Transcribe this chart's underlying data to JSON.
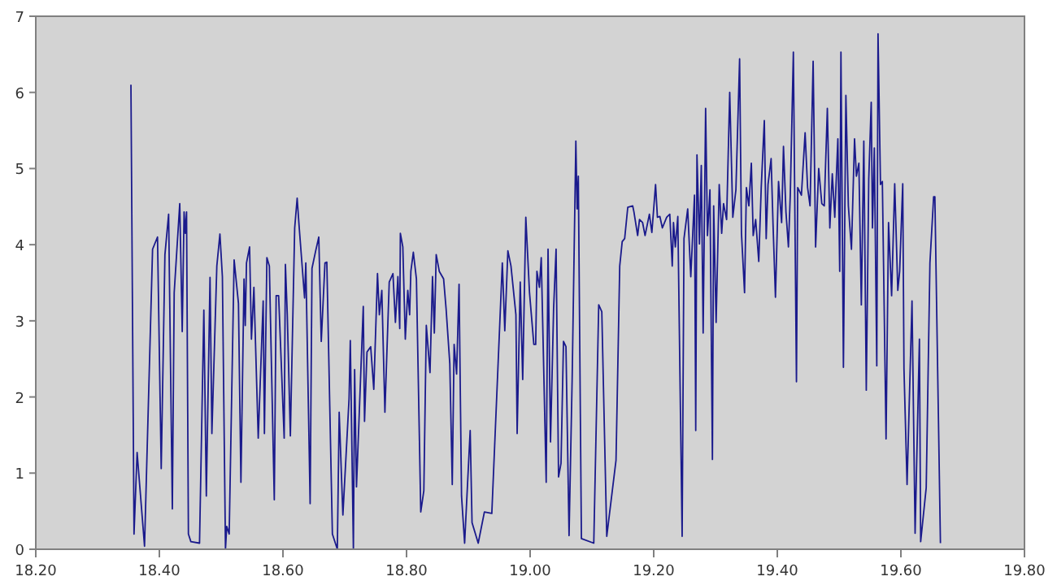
{
  "chart_data": {
    "type": "line",
    "xlim": [
      18.2,
      19.8
    ],
    "ylim": [
      0,
      7
    ],
    "xticks": [
      {
        "value": 18.2,
        "label": "18.20"
      },
      {
        "value": 18.4,
        "label": "18.40"
      },
      {
        "value": 18.6,
        "label": "18.60"
      },
      {
        "value": 18.8,
        "label": "18.80"
      },
      {
        "value": 19.0,
        "label": "19.00"
      },
      {
        "value": 19.2,
        "label": "19.20"
      },
      {
        "value": 19.4,
        "label": "19.40"
      },
      {
        "value": 19.6,
        "label": "19.60"
      },
      {
        "value": 19.8,
        "label": "19.80"
      }
    ],
    "yticks": [
      0,
      1,
      2,
      3,
      4,
      5,
      6,
      7
    ],
    "grid": false,
    "marker": "none",
    "line_style": "solid",
    "series": [
      {
        "color": "#1a1a8c",
        "x": [
          18.354,
          18.359,
          18.364,
          18.376,
          18.389,
          18.397,
          18.403,
          18.409,
          18.415,
          18.421,
          18.424,
          18.433,
          18.437,
          18.44,
          18.442,
          18.444,
          18.447,
          18.451,
          18.465,
          18.472,
          18.476,
          18.482,
          18.485,
          18.493,
          18.498,
          18.502,
          18.507,
          18.509,
          18.513,
          18.521,
          18.528,
          18.532,
          18.537,
          18.539,
          18.541,
          18.546,
          18.549,
          18.553,
          18.56,
          18.568,
          18.57,
          18.574,
          18.578,
          18.586,
          18.589,
          18.593,
          18.602,
          18.604,
          18.607,
          18.612,
          18.619,
          18.623,
          18.626,
          18.635,
          18.637,
          18.644,
          18.647,
          18.653,
          18.658,
          18.662,
          18.668,
          18.671,
          18.68,
          18.688,
          18.691,
          18.697,
          18.707,
          18.709,
          18.714,
          18.716,
          18.719,
          18.73,
          18.732,
          18.736,
          18.742,
          18.747,
          18.753,
          18.756,
          18.76,
          18.765,
          18.772,
          18.778,
          18.782,
          18.786,
          18.789,
          18.79,
          18.794,
          18.798,
          18.802,
          18.805,
          18.807,
          18.811,
          18.816,
          18.823,
          18.828,
          18.832,
          18.838,
          18.842,
          18.845,
          18.848,
          18.853,
          18.86,
          18.864,
          18.87,
          18.874,
          18.877,
          18.881,
          18.885,
          18.889,
          18.894,
          18.903,
          18.906,
          18.916,
          18.926,
          18.938,
          18.955,
          18.959,
          18.964,
          18.969,
          18.977,
          18.979,
          18.984,
          18.988,
          18.993,
          18.999,
          19.006,
          19.009,
          19.011,
          19.015,
          19.018,
          19.021,
          19.026,
          19.029,
          19.033,
          19.038,
          19.042,
          19.046,
          19.05,
          19.054,
          19.058,
          19.063,
          19.068,
          19.074,
          19.076,
          19.078,
          19.083,
          19.103,
          19.111,
          19.116,
          19.124,
          19.139,
          19.145,
          19.149,
          19.153,
          19.158,
          19.166,
          19.168,
          19.174,
          19.177,
          19.182,
          19.186,
          19.193,
          19.197,
          19.203,
          19.206,
          19.21,
          19.214,
          19.221,
          19.226,
          19.23,
          19.232,
          19.235,
          19.239,
          19.246,
          19.249,
          19.255,
          19.26,
          19.266,
          19.268,
          19.27,
          19.274,
          19.277,
          19.28,
          19.284,
          19.287,
          19.291,
          19.295,
          19.297,
          19.301,
          19.306,
          19.31,
          19.313,
          19.318,
          19.323,
          19.328,
          19.333,
          19.339,
          19.342,
          19.347,
          19.35,
          19.354,
          19.358,
          19.361,
          19.365,
          19.37,
          19.374,
          19.379,
          19.382,
          19.385,
          19.39,
          19.393,
          19.397,
          19.402,
          19.407,
          19.41,
          19.414,
          19.418,
          19.421,
          19.426,
          19.431,
          19.433,
          19.439,
          19.445,
          19.449,
          19.453,
          19.458,
          19.462,
          19.467,
          19.472,
          19.476,
          19.481,
          19.485,
          19.489,
          19.493,
          19.498,
          19.501,
          19.503,
          19.507,
          19.511,
          19.515,
          19.52,
          19.525,
          19.528,
          19.532,
          19.536,
          19.54,
          19.544,
          19.548,
          19.552,
          19.554,
          19.557,
          19.561,
          19.563,
          19.567,
          19.57,
          19.576,
          19.58,
          19.585,
          19.59,
          19.595,
          19.598,
          19.603,
          19.605,
          19.61,
          19.618,
          19.623,
          19.63,
          19.632,
          19.641,
          19.647,
          19.653,
          19.655,
          19.664
        ],
        "values": [
          6.1,
          0.2,
          1.27,
          0.04,
          3.94,
          4.1,
          1.06,
          3.87,
          4.4,
          0.53,
          3.37,
          4.54,
          2.86,
          4.43,
          4.15,
          4.43,
          0.2,
          0.1,
          0.08,
          3.14,
          0.7,
          3.57,
          1.52,
          3.72,
          4.14,
          3.58,
          0,
          0.3,
          0.2,
          3.8,
          3.23,
          0.88,
          3.55,
          2.94,
          3.76,
          3.97,
          2.76,
          3.44,
          1.46,
          3.26,
          1.52,
          3.83,
          3.72,
          0.65,
          3.33,
          3.33,
          1.46,
          3.74,
          3.08,
          1.49,
          4.22,
          4.61,
          4.26,
          3.3,
          3.76,
          0.6,
          3.69,
          3.92,
          4.1,
          2.73,
          3.76,
          3.77,
          0.2,
          0,
          1.8,
          0.45,
          1.98,
          2.74,
          0,
          2.36,
          0.82,
          3.19,
          1.68,
          2.59,
          2.66,
          2.1,
          3.62,
          3.08,
          3.4,
          1.8,
          3.51,
          3.62,
          2.98,
          3.58,
          2.9,
          4.15,
          3.97,
          2.76,
          3.4,
          3.08,
          3.65,
          3.9,
          3.55,
          0.49,
          0.77,
          2.94,
          2.32,
          3.58,
          2.84,
          3.87,
          3.65,
          3.55,
          3.16,
          2.44,
          0.85,
          2.69,
          2.3,
          3.48,
          0.7,
          0.08,
          1.56,
          0.35,
          0.08,
          0.49,
          0.47,
          3.76,
          2.87,
          3.92,
          3.72,
          3.08,
          1.52,
          3.51,
          2.23,
          4.36,
          3.37,
          2.69,
          2.69,
          3.65,
          3.44,
          3.83,
          2.73,
          0.88,
          3.94,
          1.41,
          3.16,
          3.94,
          0.95,
          1.13,
          2.73,
          2.66,
          0.18,
          2.23,
          5.36,
          4.47,
          4.9,
          0.14,
          0.08,
          3.21,
          3.12,
          0.17,
          1.17,
          3.72,
          4.04,
          4.08,
          4.49,
          4.51,
          4.43,
          4.12,
          4.33,
          4.29,
          4.12,
          4.4,
          4.16,
          4.79,
          4.36,
          4.37,
          4.22,
          4.36,
          4.4,
          3.72,
          4.29,
          3.97,
          4.37,
          0.17,
          4.08,
          4.47,
          3.58,
          4.65,
          1.56,
          5.18,
          4.01,
          5.04,
          2.84,
          5.79,
          4.12,
          4.72,
          1.18,
          4.51,
          2.98,
          4.79,
          4.15,
          4.54,
          4.33,
          6.0,
          4.36,
          4.72,
          6.44,
          4.15,
          3.37,
          4.75,
          4.51,
          5.07,
          4.12,
          4.33,
          3.78,
          4.75,
          5.63,
          4.08,
          4.79,
          5.13,
          4.29,
          3.31,
          4.83,
          4.29,
          5.29,
          4.43,
          3.97,
          4.65,
          6.53,
          2.2,
          4.75,
          4.65,
          5.47,
          4.75,
          4.51,
          6.41,
          3.97,
          5.0,
          4.54,
          4.51,
          5.79,
          4.22,
          4.93,
          4.36,
          5.39,
          3.65,
          6.53,
          2.39,
          5.96,
          4.51,
          3.94,
          5.39,
          4.9,
          5.07,
          3.21,
          5.36,
          2.09,
          4.86,
          5.87,
          4.22,
          5.27,
          2.41,
          6.77,
          4.79,
          4.83,
          1.45,
          4.29,
          3.33,
          4.8,
          3.4,
          3.65,
          4.8,
          2.37,
          0.85,
          3.26,
          0.21,
          2.76,
          0.1,
          0.81,
          3.76,
          4.63,
          4.63,
          0.08
        ]
      }
    ]
  }
}
